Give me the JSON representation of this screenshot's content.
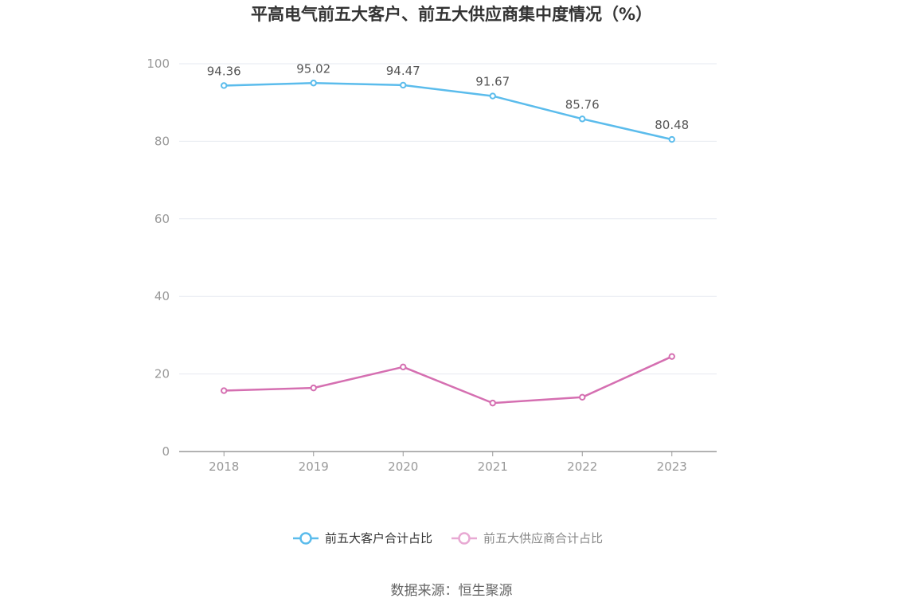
{
  "chart_data": {
    "type": "line",
    "title": "平高电气前五大客户、前五大供应商集中度情况（%）",
    "categories": [
      "2018",
      "2019",
      "2020",
      "2021",
      "2022",
      "2023"
    ],
    "ylim": [
      0,
      100
    ],
    "yticks": [
      "0",
      "20",
      "40",
      "60",
      "80",
      "100"
    ],
    "grid": true,
    "legend_position": "bottom",
    "series": [
      {
        "name": "前五大客户合计占比",
        "color": "#5bbcec",
        "values": [
          94.36,
          95.02,
          94.47,
          91.67,
          85.76,
          80.48
        ],
        "labels": [
          "94.36",
          "95.02",
          "94.47",
          "91.67",
          "85.76",
          "80.48"
        ]
      },
      {
        "name": "前五大供应商合计占比",
        "color": "#d56fb1",
        "legend_color": "#e8a9d3",
        "values": [
          15.7,
          16.4,
          21.8,
          12.5,
          14.0,
          24.5
        ],
        "labels": []
      }
    ]
  },
  "source": "数据来源：恒生聚源"
}
